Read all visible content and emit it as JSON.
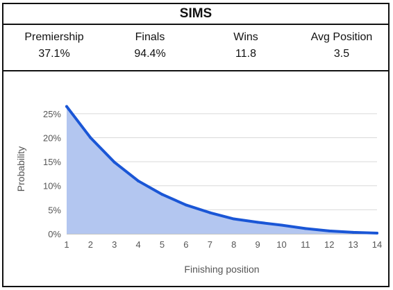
{
  "title": "SIMS",
  "stats": [
    {
      "label": "Premiership",
      "value": "37.1%"
    },
    {
      "label": "Finals",
      "value": "94.4%"
    },
    {
      "label": "Wins",
      "value": "11.8"
    },
    {
      "label": "Avg Position",
      "value": "3.5"
    }
  ],
  "colors": {
    "line": "#1a56d6",
    "fill": "#b3c6f0",
    "grid": "#d9d9d9",
    "border": "#111111"
  },
  "chart_data": {
    "type": "area",
    "xlabel": "Finishing position",
    "ylabel": "Probability",
    "x": [
      1,
      2,
      3,
      4,
      5,
      6,
      7,
      8,
      9,
      10,
      11,
      12,
      13,
      14
    ],
    "values": [
      26.5,
      20.0,
      14.9,
      11.0,
      8.2,
      6.0,
      4.4,
      3.1,
      2.4,
      1.8,
      1.1,
      0.6,
      0.3,
      0.15
    ],
    "ylim": [
      0,
      27
    ],
    "yticks": [
      0,
      5,
      10,
      15,
      20,
      25
    ],
    "ytick_labels": [
      "0%",
      "5%",
      "10%",
      "15%",
      "20%",
      "25%"
    ],
    "xtick_labels": [
      "1",
      "2",
      "3",
      "4",
      "5",
      "6",
      "7",
      "8",
      "9",
      "10",
      "11",
      "12",
      "13",
      "14"
    ],
    "grid": true,
    "legend": "none"
  }
}
